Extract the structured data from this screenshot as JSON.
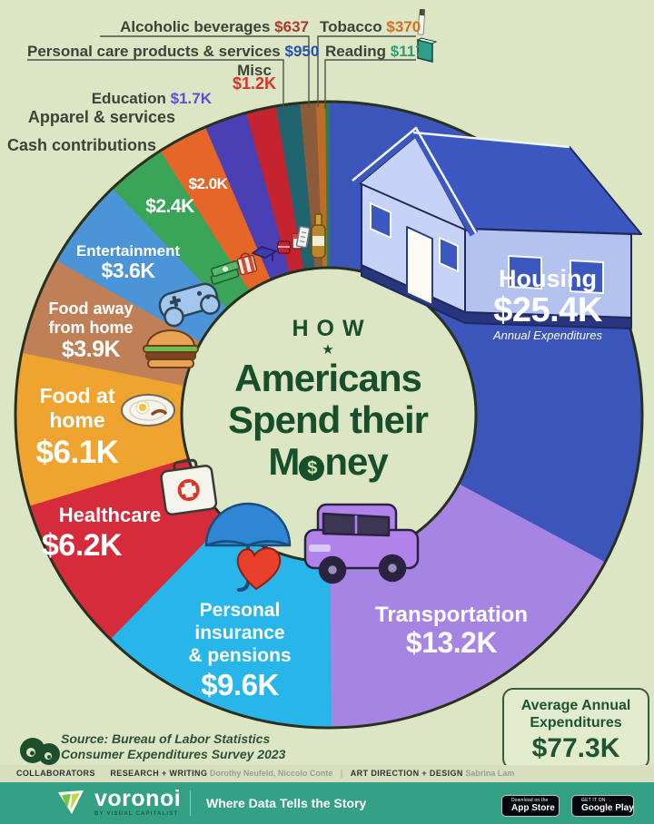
{
  "page": {
    "background": "#dce6c4"
  },
  "title": {
    "kicker": "HOW",
    "star": "★",
    "line1": "Americans",
    "line2": "Spend their",
    "line3_prefix": "M",
    "line3_suffix": "ney",
    "coin_symbol": "$",
    "accent_color": "#174e2b"
  },
  "chart_data": {
    "type": "pie",
    "variant": "donut",
    "title": "How Americans Spend their Money",
    "units": "USD, annual expenditures",
    "legend_position": "in-slice and callouts",
    "total": {
      "label_line1": "Average Annual",
      "label_line2": "Expenditures",
      "value": 77300,
      "value_label": "$77.3K"
    },
    "segments": [
      {
        "label": "Housing",
        "value": 25400,
        "value_label": "$25.4K",
        "sublabel": "Annual Expenditures",
        "color": "#3b55bb"
      },
      {
        "label": "Transportation",
        "value": 13200,
        "value_label": "$13.2K",
        "color": "#a584e4"
      },
      {
        "label": "Personal insurance & pensions",
        "value": 9600,
        "value_label": "$9.6K",
        "color": "#27b5ea"
      },
      {
        "label": "Healthcare",
        "value": 6200,
        "value_label": "$6.2K",
        "color": "#d62b3a"
      },
      {
        "label": "Food at home",
        "value": 6100,
        "value_label": "$6.1K",
        "color": "#efa42f"
      },
      {
        "label": "Food away from home",
        "value": 3900,
        "value_label": "$3.9K",
        "color": "#c08057"
      },
      {
        "label": "Entertainment",
        "value": 3600,
        "value_label": "$3.6K",
        "color": "#4b94d8"
      },
      {
        "label": "Cash contributions",
        "value": 2400,
        "value_label": "$2.4K",
        "color": "#3aa458"
      },
      {
        "label": "Apparel & services",
        "value": 2000,
        "value_label": "$2.0K",
        "color": "#e66629"
      },
      {
        "label": "Education",
        "value": 1700,
        "value_label": "$1.7K",
        "color": "#4a3fb4",
        "value_color": "#5b50d8"
      },
      {
        "label": "Misc",
        "value": 1200,
        "value_label": "$1.2K",
        "color": "#c52330",
        "value_color": "#d8332c"
      },
      {
        "label": "Personal care products & services",
        "value": 950,
        "value_label": "$950",
        "color": "#20646f",
        "value_color": "#2451a8"
      },
      {
        "label": "Alcoholic beverages",
        "value": 637,
        "value_label": "$637",
        "color": "#8c5c3a",
        "value_color": "#a83b31"
      },
      {
        "label": "Tobacco",
        "value": 370,
        "value_label": "$370",
        "color": "#bd6d28",
        "value_color": "#cf7024"
      },
      {
        "label": "Reading",
        "value": 117,
        "value_label": "$117",
        "color": "#2e7e48",
        "value_color": "#2f9d72"
      }
    ]
  },
  "summary_box": {
    "line1": "Average Annual",
    "line2": "Expenditures",
    "value": "$77.3K"
  },
  "source": {
    "line1": "Source: Bureau of Labor Statistics",
    "line2": "Consumer Expenditures Survey 2023"
  },
  "collaborators": {
    "heading": "COLLABORATORS",
    "research_label": "RESEARCH + WRITING",
    "research_names": "Dorothy Neufeld, Niccolo Conte",
    "divider": "|",
    "design_label": "ART DIRECTION + DESIGN",
    "design_names": "Sabrina Lam"
  },
  "footer": {
    "brand": "voronoi",
    "brand_sub": "BY VISUAL CAPITALIST",
    "tagline": "Where Data Tells the Story",
    "bar_color": "#35a184",
    "appstore": {
      "line1": "Download on the",
      "line2": "App Store"
    },
    "googleplay": {
      "line1": "GET IT ON",
      "line2": "Google Play"
    }
  }
}
